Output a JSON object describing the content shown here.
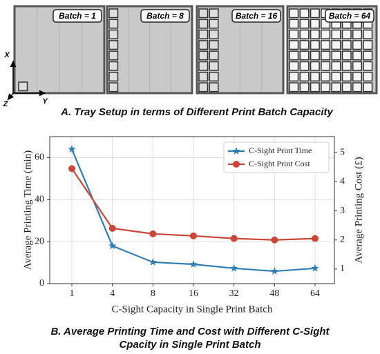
{
  "panel_a": {
    "batch_labels": [
      "Batch = 1",
      "Batch = 8",
      "Batch = 16",
      "Batch = 64"
    ],
    "axes": [
      "X",
      "Y",
      "Z"
    ],
    "caption": "A. Tray Setup in terms of Different Print Batch Capacity"
  },
  "chart_data": {
    "type": "line",
    "x_label": "C-Sight Capacity in Single Print Batch",
    "y_label": "Average Printing Time (min)",
    "y2_label": "Average Printing Cost (£)",
    "categories": [
      "1",
      "4",
      "8",
      "16",
      "32",
      "48",
      "64"
    ],
    "series": [
      {
        "name": "C-Sight Print Time",
        "color": "#2e7fb8",
        "marker": "star",
        "values": [
          64,
          18,
          10.2,
          9.2,
          7.3,
          5.9,
          7.3
        ]
      },
      {
        "name": "C-Sight Print Cost",
        "color": "#cc4637",
        "marker": "circle",
        "axis": "y2",
        "values": [
          4.45,
          2.4,
          2.21,
          2.14,
          2.05,
          2.0,
          2.05
        ]
      }
    ],
    "ylim": [
      0,
      70
    ],
    "yticks": [
      0,
      20,
      40,
      60
    ],
    "y2lim": [
      0.5,
      5.55
    ],
    "y2ticks": [
      1,
      2,
      3,
      4,
      5
    ],
    "grid": true,
    "legend": "upper right",
    "caption": "B. Average Printing Time and Cost with Different C-Sight Cpacity in Single Print Batch"
  }
}
